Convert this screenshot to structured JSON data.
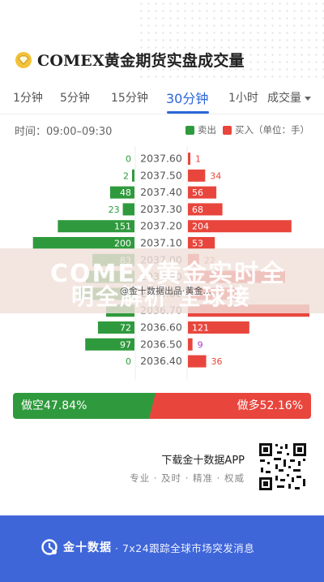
{
  "header": {
    "title": "COMEX黄金期货实盘成交量",
    "logo_icon": "gold-diamond-icon"
  },
  "tabs": [
    {
      "label": "1分钟"
    },
    {
      "label": "5分钟"
    },
    {
      "label": "15分钟"
    },
    {
      "label": "30分钟",
      "active": true
    },
    {
      "label": "1小时"
    },
    {
      "label": "成交量"
    }
  ],
  "info": {
    "time": "时间：09:00–09:30",
    "legend_sell": "卖出",
    "legend_buy": "买入（单位：手）"
  },
  "colors": {
    "sell": "#2f9a3d",
    "buy": "#e8463d",
    "accent": "#2a65d8",
    "footer": "#3f66d9"
  },
  "chart_data": {
    "type": "bar",
    "categories": [
      "2037.60",
      "2037.50",
      "2037.40",
      "2037.30",
      "2037.20",
      "2037.10",
      "2037.00",
      "2036.90",
      "2036.80",
      "2036.70",
      "2036.60",
      "2036.50",
      "2036.40"
    ],
    "series": [
      {
        "name": "卖出",
        "values": [
          0,
          2,
          48,
          23,
          151,
          200,
          83,
          null,
          null,
          null,
          72,
          97,
          0
        ]
      },
      {
        "name": "买入",
        "values": [
          1,
          34,
          56,
          68,
          204,
          53,
          22,
          null,
          null,
          null,
          121,
          9,
          36
        ]
      }
    ],
    "value_labels_shown": [
      "0",
      "2",
      "48",
      "23",
      "151",
      "200",
      "83",
      "72",
      "97",
      "0",
      "1",
      "34",
      "56",
      "68",
      "204",
      "53",
      "22",
      "121",
      "9",
      "36"
    ],
    "max_bar_scale": 250
  },
  "watermark": {
    "line1": "COMEX黄金实时全",
    "line2": "明全解析 全球接",
    "caption": "@金十数据出品·黄金..."
  },
  "ratio": {
    "short_label": "做空47.84%",
    "long_label": "做多52.16%",
    "short_pct": 47.84,
    "long_pct": 52.16
  },
  "promo": {
    "download": "下载金十数据APP",
    "tagline": "专业 · 及时 · 精准 · 权威",
    "qr_icon": "qr-code-icon"
  },
  "footer": {
    "brand": "金十数据",
    "slogan": "· 7x24跟踪全球市场突发消息",
    "logo_icon": "jin10-logo-icon"
  }
}
